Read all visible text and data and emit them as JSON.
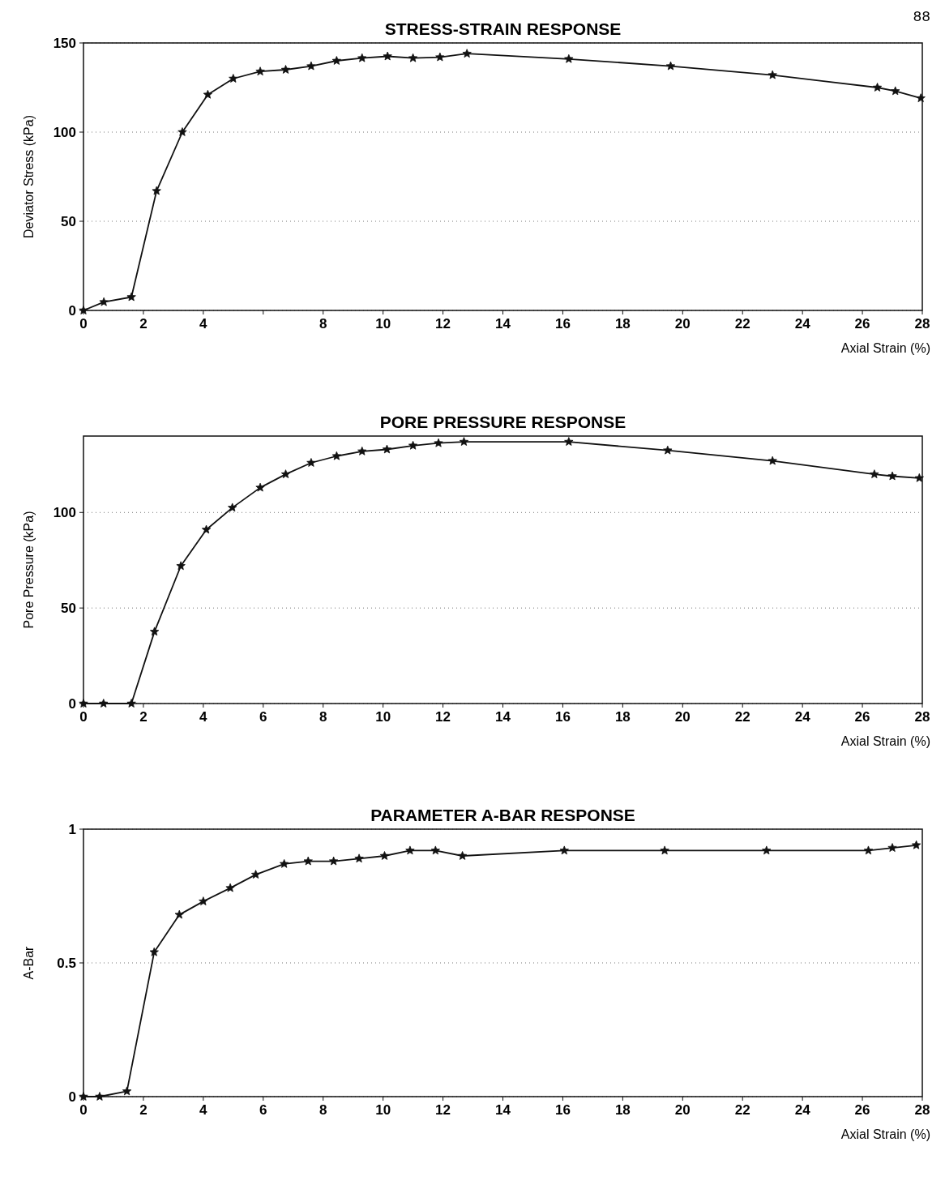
{
  "chart_data": [
    {
      "type": "line",
      "title": "STRESS-STRAIN RESPONSE",
      "xlabel": "Axial Strain (%)",
      "ylabel": "Deviator Stress (kPa)",
      "annotations": [
        "88"
      ],
      "x": [
        0,
        0.68,
        1.6,
        2.44,
        3.3,
        4.15,
        5,
        5.9,
        6.75,
        7.6,
        8.45,
        9.3,
        10.15,
        11,
        11.9,
        12.8,
        16.2,
        19.6,
        23,
        26.5,
        27.1,
        27.95
      ],
      "series": [
        {
          "color": "#111111",
          "values": [
            0,
            4.7,
            7.5,
            67,
            100,
            121,
            130,
            134,
            135,
            137,
            140,
            141.5,
            142.5,
            141.5,
            142,
            144,
            141,
            137,
            132,
            125,
            123,
            119
          ]
        }
      ],
      "xlim": [
        0,
        28
      ],
      "xticks": [
        0,
        2,
        4,
        {
          "value": 6,
          "label": null
        },
        8,
        10,
        12,
        14,
        16,
        18,
        20,
        22,
        24,
        26,
        28
      ],
      "ylim": [
        0,
        150
      ],
      "yticks": [
        0,
        50,
        100,
        150
      ],
      "grid": "y",
      "marker": "star",
      "line_style": "solid"
    },
    {
      "type": "line",
      "title": "PORE PRESSURE RESPONSE",
      "xlabel": "Axial Strain (%)",
      "ylabel": "Pore Pressure (kPa)",
      "x": [
        0,
        0.67,
        1.6,
        2.37,
        3.25,
        4.1,
        4.97,
        5.9,
        6.75,
        7.6,
        8.45,
        9.3,
        10.13,
        11,
        11.85,
        12.7,
        16.2,
        19.5,
        23,
        26.4,
        27,
        27.9
      ],
      "series": [
        {
          "color": "#111111",
          "values": [
            0,
            0,
            0,
            37.6,
            72,
            91,
            102.5,
            113,
            120,
            126,
            129.5,
            132,
            133,
            135,
            136.3,
            137,
            137,
            132.5,
            127,
            120,
            119,
            118
          ]
        }
      ],
      "xlim": [
        0,
        28
      ],
      "xticks": [
        0,
        2,
        4,
        6,
        8,
        10,
        12,
        14,
        16,
        18,
        20,
        22,
        24,
        26,
        28
      ],
      "ylim": [
        0,
        140
      ],
      "yticks": [
        0,
        50,
        100
      ],
      "grid": "y",
      "marker": "star",
      "line_style": "solid"
    },
    {
      "type": "line",
      "title": "PARAMETER A-BAR RESPONSE",
      "xlabel": "Axial Strain (%)",
      "ylabel": "A-Bar",
      "x": [
        0,
        0.54,
        1.45,
        2.36,
        3.2,
        4,
        4.9,
        5.75,
        6.7,
        7.5,
        8.35,
        9.2,
        10.05,
        10.9,
        11.75,
        12.65,
        16.05,
        19.4,
        22.8,
        26.2,
        27,
        27.8
      ],
      "series": [
        {
          "color": "#111111",
          "values": [
            0,
            0,
            0.02,
            0.54,
            0.68,
            0.73,
            0.78,
            0.83,
            0.87,
            0.88,
            0.88,
            0.89,
            0.9,
            0.92,
            0.92,
            0.9,
            0.92,
            0.92,
            0.92,
            0.92,
            0.93,
            0.94
          ]
        }
      ],
      "xlim": [
        0,
        28
      ],
      "xticks": [
        0,
        2,
        4,
        6,
        8,
        10,
        12,
        14,
        16,
        18,
        20,
        22,
        24,
        26,
        28
      ],
      "ylim": [
        0,
        1
      ],
      "yticks": [
        0,
        0.5,
        1
      ],
      "grid": "y",
      "marker": "star",
      "line_style": "solid"
    }
  ]
}
